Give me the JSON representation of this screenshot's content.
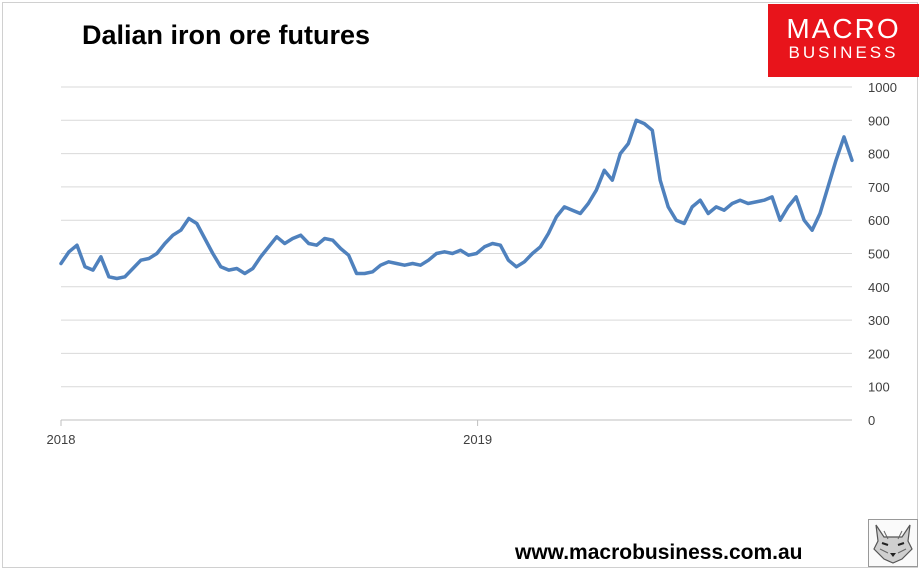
{
  "title": "Dalian iron ore futures",
  "logo": {
    "line1": "MACRO",
    "line2": "BUSINESS",
    "background": "#e8141b"
  },
  "footer": "www.macrobusiness.com.au",
  "icons": [
    "wolf-icon"
  ],
  "chart_data": {
    "type": "line",
    "title": "Dalian iron ore futures",
    "xlabel": "",
    "ylabel": "",
    "x_ticks": [
      "2018",
      "2019"
    ],
    "y_ticks": [
      0,
      100,
      200,
      300,
      400,
      500,
      600,
      700,
      800,
      900,
      1000
    ],
    "ylim": [
      0,
      1000
    ],
    "xlim": [
      "2018-01-01",
      "2019-11-25"
    ],
    "y_axis_position": "right",
    "grid": true,
    "legend": "none",
    "line_color": "#4f81bd",
    "series": [
      {
        "x": [
          "2018-01-01",
          "2018-01-08",
          "2018-01-15",
          "2018-01-22",
          "2018-01-29",
          "2018-02-05",
          "2018-02-12",
          "2018-02-19",
          "2018-02-26",
          "2018-03-05",
          "2018-03-12",
          "2018-03-19",
          "2018-03-26",
          "2018-04-02",
          "2018-04-09",
          "2018-04-16",
          "2018-04-23",
          "2018-04-30",
          "2018-05-07",
          "2018-05-14",
          "2018-05-21",
          "2018-05-28",
          "2018-06-04",
          "2018-06-11",
          "2018-06-18",
          "2018-06-25",
          "2018-07-02",
          "2018-07-09",
          "2018-07-16",
          "2018-07-23",
          "2018-07-30",
          "2018-08-06",
          "2018-08-13",
          "2018-08-20",
          "2018-08-27",
          "2018-09-03",
          "2018-09-10",
          "2018-09-17",
          "2018-09-24",
          "2018-10-01",
          "2018-10-08",
          "2018-10-15",
          "2018-10-22",
          "2018-10-29",
          "2018-11-05",
          "2018-11-12",
          "2018-11-19",
          "2018-11-26",
          "2018-12-03",
          "2018-12-10",
          "2018-12-17",
          "2018-12-24",
          "2018-12-31",
          "2019-01-07",
          "2019-01-14",
          "2019-01-21",
          "2019-01-28",
          "2019-02-04",
          "2019-02-11",
          "2019-02-18",
          "2019-02-25",
          "2019-03-04",
          "2019-03-11",
          "2019-03-18",
          "2019-03-25",
          "2019-04-01",
          "2019-04-08",
          "2019-04-15",
          "2019-04-22",
          "2019-04-29",
          "2019-05-06",
          "2019-05-13",
          "2019-05-20",
          "2019-05-27",
          "2019-06-03",
          "2019-06-10",
          "2019-06-17",
          "2019-06-24",
          "2019-07-01",
          "2019-07-08",
          "2019-07-15",
          "2019-07-22",
          "2019-07-29",
          "2019-08-05",
          "2019-08-12",
          "2019-08-19",
          "2019-08-26",
          "2019-09-02",
          "2019-09-09",
          "2019-09-16",
          "2019-09-23",
          "2019-09-30",
          "2019-10-07",
          "2019-10-14",
          "2019-10-21",
          "2019-10-28",
          "2019-11-04",
          "2019-11-11",
          "2019-11-18",
          "2019-11-25"
        ],
        "y": [
          470,
          505,
          525,
          460,
          450,
          490,
          430,
          425,
          430,
          455,
          480,
          485,
          500,
          530,
          555,
          570,
          605,
          590,
          545,
          500,
          460,
          450,
          455,
          440,
          455,
          490,
          520,
          550,
          530,
          545,
          555,
          530,
          525,
          545,
          540,
          515,
          495,
          440,
          440,
          445,
          465,
          475,
          470,
          465,
          470,
          465,
          480,
          500,
          505,
          500,
          510,
          495,
          500,
          520,
          530,
          525,
          480,
          460,
          475,
          500,
          520,
          560,
          610,
          640,
          630,
          620,
          650,
          690,
          750,
          720,
          800,
          830,
          900,
          890,
          870,
          720,
          640,
          600,
          590,
          640,
          660,
          620,
          640,
          630,
          650,
          660,
          650,
          655,
          660,
          670,
          600,
          640,
          670,
          600,
          570,
          620,
          700,
          780,
          850,
          780
        ]
      }
    ]
  }
}
